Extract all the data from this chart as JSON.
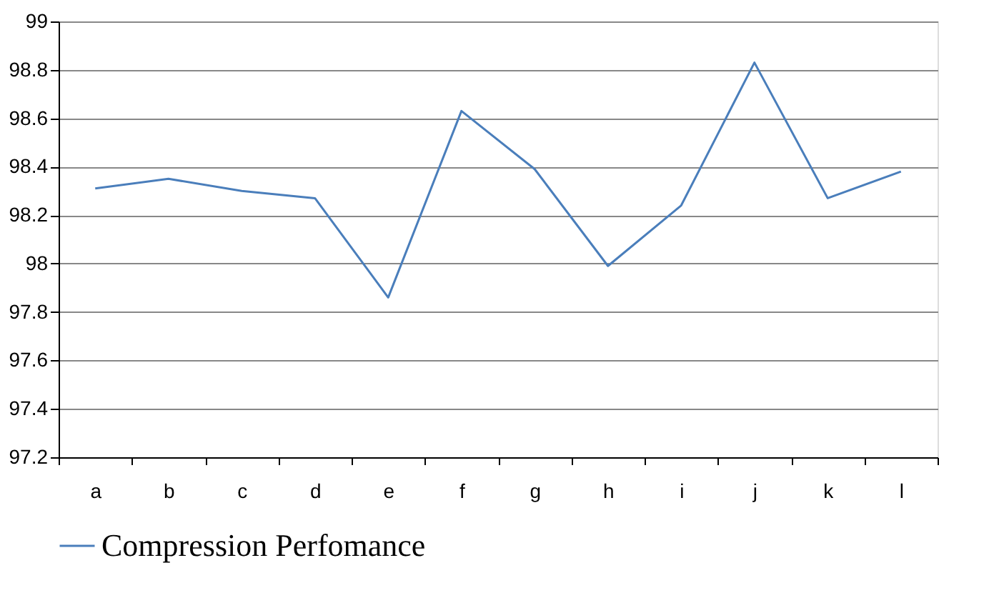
{
  "chart_data": {
    "type": "line",
    "categories": [
      "a",
      "b",
      "c",
      "d",
      "e",
      "f",
      "g",
      "h",
      "i",
      "j",
      "k",
      "l"
    ],
    "series": [
      {
        "name": "Compression Perfomance",
        "color": "#4a7ebb",
        "values": [
          98.31,
          98.35,
          98.3,
          98.27,
          97.86,
          98.63,
          98.39,
          97.99,
          98.24,
          98.83,
          98.27,
          98.38
        ]
      }
    ],
    "ylim": [
      97.2,
      99
    ],
    "yticks": [
      97.2,
      97.4,
      97.6,
      97.8,
      98,
      98.2,
      98.4,
      98.6,
      98.8,
      99
    ],
    "grid": "y",
    "legend": "bottom",
    "marker": "none",
    "line_style": "solid"
  }
}
